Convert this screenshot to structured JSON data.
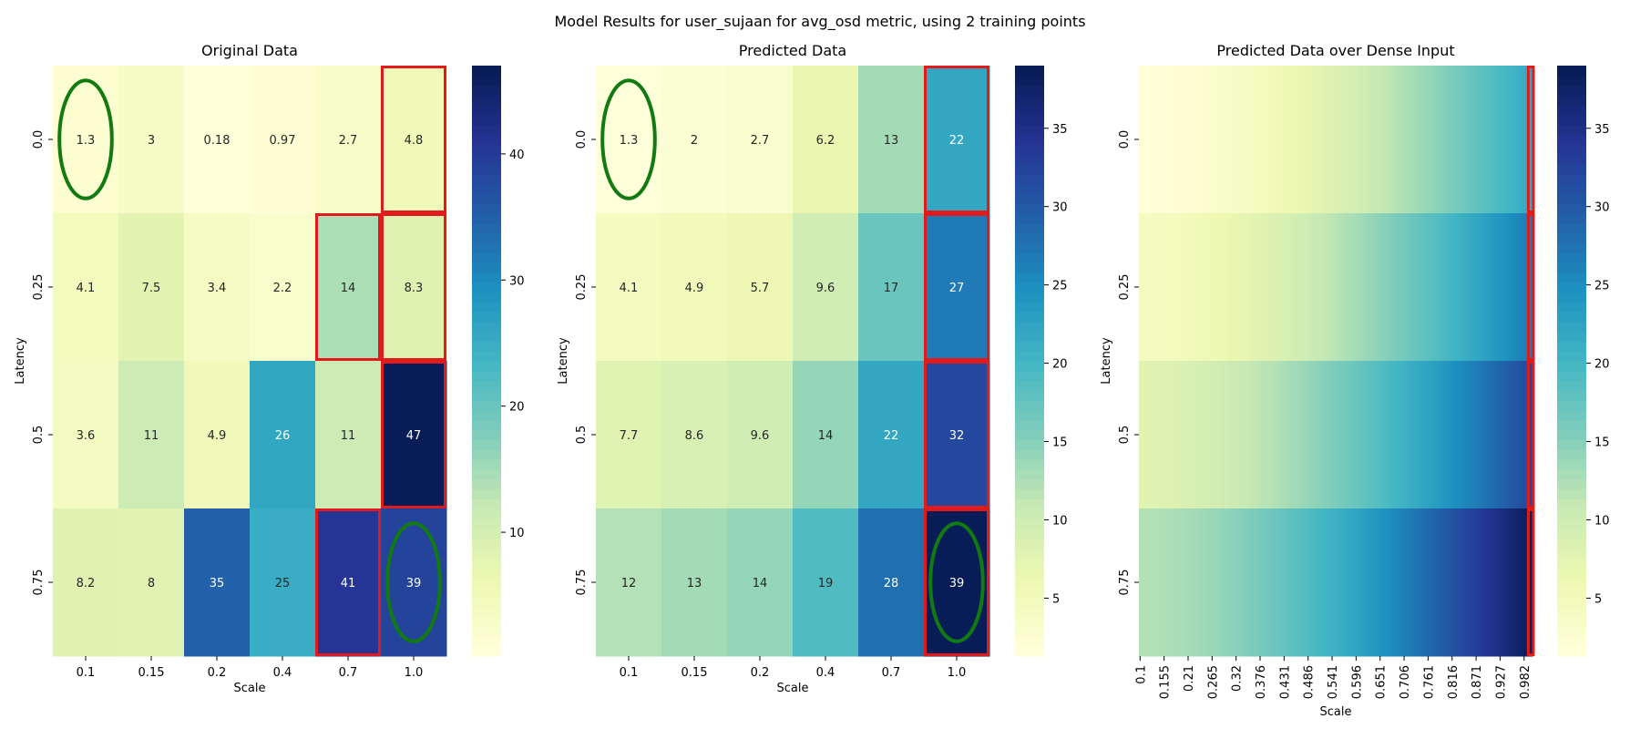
{
  "figure": {
    "title": "Model Results for user_sujaan for avg_osd metric, using 2 training points"
  },
  "chart_data": [
    {
      "type": "heatmap",
      "title": "Original Data",
      "xlabel": "Scale",
      "ylabel": "Latency",
      "x_categories": [
        "0.1",
        "0.15",
        "0.2",
        "0.4",
        "0.7",
        "1.0"
      ],
      "y_categories": [
        "0.0",
        "0.25",
        "0.5",
        "0.75"
      ],
      "values": [
        [
          1.3,
          3,
          0.18,
          0.97,
          2.7,
          4.8
        ],
        [
          4.1,
          7.5,
          3.4,
          2.2,
          14,
          8.3
        ],
        [
          3.6,
          11,
          4.9,
          26,
          11,
          47
        ],
        [
          8.2,
          8,
          35,
          25,
          41,
          39
        ]
      ],
      "annotated": true,
      "colormap": "YlGnBu",
      "vmin": 0.18,
      "vmax": 47,
      "colorbar_ticks": [
        10,
        20,
        30,
        40
      ],
      "highlight_red_cells": [
        [
          0,
          5
        ],
        [
          1,
          4
        ],
        [
          1,
          5
        ],
        [
          2,
          5
        ],
        [
          3,
          4
        ]
      ],
      "highlight_green_ellipses": [
        [
          0,
          0
        ],
        [
          3,
          5
        ]
      ]
    },
    {
      "type": "heatmap",
      "title": "Predicted Data",
      "xlabel": "Scale",
      "ylabel": "Latency",
      "x_categories": [
        "0.1",
        "0.15",
        "0.2",
        "0.4",
        "0.7",
        "1.0"
      ],
      "y_categories": [
        "0.0",
        "0.25",
        "0.5",
        "0.75"
      ],
      "values": [
        [
          1.3,
          2,
          2.7,
          6.2,
          13,
          22
        ],
        [
          4.1,
          4.9,
          5.7,
          9.6,
          17,
          27
        ],
        [
          7.7,
          8.6,
          9.6,
          14,
          22,
          32
        ],
        [
          12,
          13,
          14,
          19,
          28,
          39
        ]
      ],
      "annotated": true,
      "colormap": "YlGnBu",
      "vmin": 1.3,
      "vmax": 39,
      "colorbar_ticks": [
        5,
        10,
        15,
        20,
        25,
        30,
        35
      ],
      "highlight_red_cells": [
        [
          0,
          5
        ],
        [
          1,
          5
        ],
        [
          2,
          5
        ],
        [
          3,
          5
        ]
      ],
      "highlight_green_ellipses": [
        [
          0,
          0
        ],
        [
          3,
          5
        ]
      ]
    },
    {
      "type": "heatmap",
      "title": "Predicted Data over Dense Input",
      "xlabel": "Scale",
      "ylabel": "Latency",
      "y_categories": [
        "0.0",
        "0.25",
        "0.5",
        "0.75"
      ],
      "x_range": [
        0.1,
        1.0
      ],
      "x_tick_labels": [
        "0.1",
        "0.155",
        "0.21",
        "0.265",
        "0.32",
        "0.376",
        "0.431",
        "0.486",
        "0.541",
        "0.596",
        "0.651",
        "0.706",
        "0.761",
        "0.816",
        "0.871",
        "0.927",
        "0.982"
      ],
      "row_value_ranges": [
        [
          1.3,
          22
        ],
        [
          4.1,
          27
        ],
        [
          7.7,
          32
        ],
        [
          12,
          39
        ]
      ],
      "annotated": false,
      "colormap": "YlGnBu",
      "vmin": 1.3,
      "vmax": 39,
      "colorbar_ticks": [
        5,
        10,
        15,
        20,
        25,
        30,
        35
      ],
      "highlight_red_column_at_x": 1.0
    }
  ]
}
